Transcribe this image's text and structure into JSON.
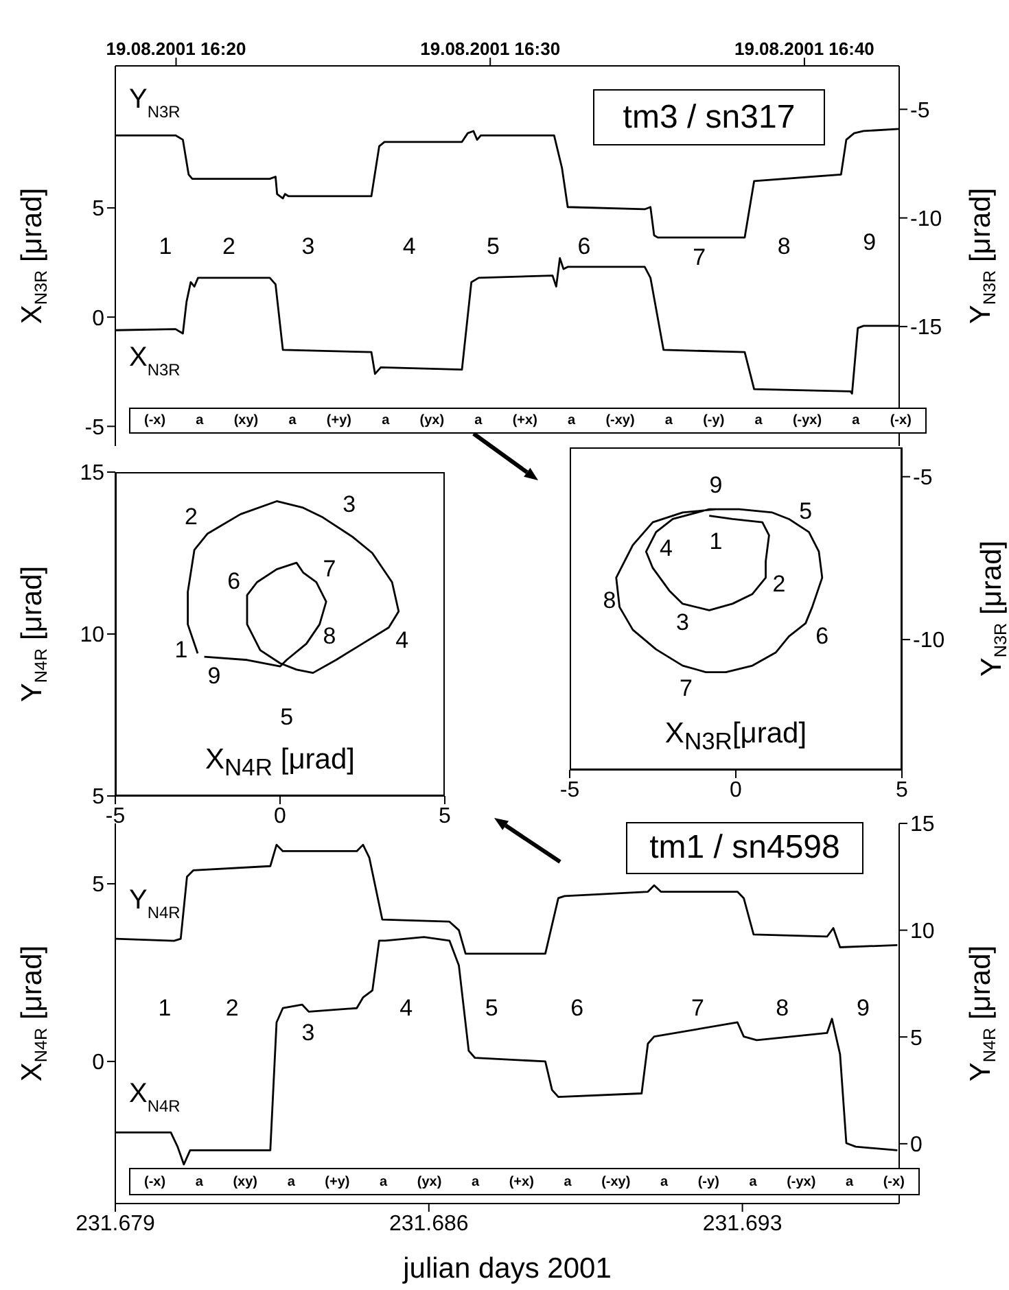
{
  "chart_data": [
    {
      "type": "line",
      "title": "tm3 / sn317",
      "ylabel": "X$_{N3R}$ [μrad]",
      "y2label": "Y$_{N3R}$ [μrad]",
      "xlim": [
        "2001-08-19T16:18:04",
        "2001-08-19T16:43:01"
      ],
      "xticks": [
        {
          "value": "2001-08-19T16:20",
          "label": "19.08.2001 16:20"
        },
        {
          "value": "2001-08-19T16:30",
          "label": "19.08.2001 16:30"
        },
        {
          "value": "2001-08-19T16:40",
          "label": "19.08.2001 16:40"
        }
      ],
      "ylim": [
        -5.9,
        11.5
      ],
      "yticks": [
        -5,
        0,
        5
      ],
      "y2lim": [
        -20.5,
        -3
      ],
      "y2ticks": [
        -15,
        -10,
        -5
      ],
      "series": [
        {
          "name": "Y$_{N3R}$",
          "axis": "y2",
          "color": "#000000",
          "x": [
            "2001-08-19T16:18:04",
            "2001-08-19T16:19:59",
            "2001-08-19T16:20:13",
            "2001-08-19T16:20:24",
            "2001-08-19T16:20:31",
            "2001-08-19T16:22:59",
            "2001-08-19T16:23:10",
            "2001-08-19T16:23:13",
            "2001-08-19T16:23:24",
            "2001-08-19T16:23:28",
            "2001-08-19T16:23:35",
            "2001-08-19T16:26:13",
            "2001-08-19T16:26:28",
            "2001-08-19T16:26:38",
            "2001-08-19T16:29:06",
            "2001-08-19T16:29:17",
            "2001-08-19T16:29:28",
            "2001-08-19T16:29:35",
            "2001-08-19T16:29:42",
            "2001-08-19T16:32:02",
            "2001-08-19T16:32:17",
            "2001-08-19T16:32:28",
            "2001-08-19T16:34:55",
            "2001-08-19T16:35:06",
            "2001-08-19T16:35:13",
            "2001-08-19T16:35:20",
            "2001-08-19T16:38:06",
            "2001-08-19T16:38:24",
            "2001-08-19T16:41:10",
            "2001-08-19T16:41:20",
            "2001-08-19T16:41:35",
            "2001-08-19T16:41:53",
            "2001-08-19T16:43:01"
          ],
          "values": [
            -6.2,
            -6.2,
            -6.4,
            -8.0,
            -8.2,
            -8.2,
            -8.1,
            -8.9,
            -9.1,
            -8.9,
            -9.0,
            -9.0,
            -6.7,
            -6.5,
            -6.5,
            -6.1,
            -6.0,
            -6.4,
            -6.2,
            -6.2,
            -7.7,
            -9.5,
            -9.6,
            -9.5,
            -10.8,
            -10.9,
            -10.9,
            -8.3,
            -8.0,
            -6.4,
            -6.1,
            -6.0,
            -5.9
          ]
        },
        {
          "name": "X$_{N3R}$",
          "color": "#000000",
          "x": [
            "2001-08-19T16:18:04",
            "2001-08-19T16:19:59",
            "2001-08-19T16:20:13",
            "2001-08-19T16:20:20",
            "2001-08-19T16:20:28",
            "2001-08-19T16:20:35",
            "2001-08-19T16:20:42",
            "2001-08-19T16:22:59",
            "2001-08-19T16:23:10",
            "2001-08-19T16:23:24",
            "2001-08-19T16:26:13",
            "2001-08-19T16:26:20",
            "2001-08-19T16:26:31",
            "2001-08-19T16:29:06",
            "2001-08-19T16:29:24",
            "2001-08-19T16:29:38",
            "2001-08-19T16:31:59",
            "2001-08-19T16:32:06",
            "2001-08-19T16:32:13",
            "2001-08-19T16:32:20",
            "2001-08-19T16:32:28",
            "2001-08-19T16:34:55",
            "2001-08-19T16:35:06",
            "2001-08-19T16:35:31",
            "2001-08-19T16:38:06",
            "2001-08-19T16:38:24",
            "2001-08-19T16:41:28",
            "2001-08-19T16:41:31",
            "2001-08-19T16:41:42",
            "2001-08-19T16:41:53",
            "2001-08-19T16:43:01"
          ],
          "values": [
            -0.6,
            -0.55,
            -0.75,
            0.7,
            1.6,
            1.4,
            1.8,
            1.8,
            1.5,
            -1.5,
            -1.6,
            -2.6,
            -2.3,
            -2.4,
            1.6,
            1.8,
            1.9,
            1.4,
            2.7,
            2.2,
            2.3,
            2.3,
            1.8,
            -1.5,
            -1.6,
            -3.3,
            -3.4,
            -3.5,
            -0.5,
            -0.4,
            -0.4
          ]
        }
      ],
      "annotations": [
        "(-x) a (xy) a (+y) a (yx) a (+x) a (-xy) a (-y) a (-yx) a (-x)",
        "1",
        "2",
        "3",
        "4",
        "5",
        "6",
        "7",
        "8",
        "9"
      ]
    },
    {
      "type": "line",
      "xlabel": "X$_{N4R}$ [μrad]",
      "ylabel": "Y$_{N4R}$ [μrad]",
      "xlim": [
        -5,
        5
      ],
      "xticks": [
        -5,
        0,
        5
      ],
      "ylim": [
        5,
        15
      ],
      "yticks": [
        5,
        10,
        15
      ],
      "series": [
        {
          "color": "#000000",
          "x": [
            -2.5,
            -2.8,
            -2.8,
            -2.6,
            -2.2,
            -1.2,
            -0.1,
            0.7,
            1.3,
            2.2,
            2.8,
            3.4,
            3.6,
            3.3,
            2.5,
            1.7,
            1.0,
            0.5,
            0.0,
            -0.6,
            -1.0,
            -1.0,
            -0.7,
            -0.1,
            0.5,
            0.7,
            1.1,
            1.4,
            1.2,
            0.8,
            0.2,
            0.0,
            -1.0,
            -2.3
          ],
          "values": [
            9.4,
            10.3,
            11.3,
            12.6,
            13.1,
            13.7,
            14.1,
            13.9,
            13.6,
            13.0,
            12.5,
            11.6,
            10.7,
            10.2,
            9.7,
            9.2,
            8.8,
            8.9,
            9.1,
            9.5,
            10.3,
            11.2,
            11.6,
            12.0,
            12.2,
            11.9,
            11.6,
            11.0,
            10.3,
            9.7,
            9.2,
            9.0,
            9.2,
            9.3
          ]
        }
      ],
      "annotations": [
        "1",
        "2",
        "3",
        "4",
        "5",
        "6",
        "7",
        "8",
        "9"
      ]
    },
    {
      "type": "line",
      "xlabel": "X$_{N3R}$[μrad]",
      "ylabel": "Y$_{N3R}$ [μrad]",
      "xlim": [
        -5,
        5
      ],
      "xticks": [
        -5,
        0,
        5
      ],
      "ylim": [
        -14,
        -4.1
      ],
      "yticks": [
        -10,
        -5
      ],
      "series": [
        {
          "color": "#000000",
          "x": [
            -0.8,
            -0.1,
            0.8,
            1.0,
            0.9,
            0.9,
            0.5,
            -0.1,
            -0.8,
            -1.6,
            -2.0,
            -2.5,
            -2.7,
            -2.4,
            -1.9,
            -0.8,
            0.1,
            1.1,
            1.6,
            2.2,
            2.5,
            2.6,
            2.3,
            2.1,
            1.6,
            1.2,
            0.5,
            -0.3,
            -0.9,
            -1.6,
            -2.4,
            -3.1,
            -3.5,
            -3.6,
            -3.1,
            -2.5,
            -1.6,
            -0.6
          ],
          "values": [
            -6.2,
            -6.3,
            -6.4,
            -6.8,
            -7.6,
            -8.1,
            -8.6,
            -8.9,
            -9.1,
            -8.9,
            -8.5,
            -7.8,
            -7.3,
            -6.7,
            -6.3,
            -6.0,
            -6.0,
            -6.1,
            -6.3,
            -6.7,
            -7.3,
            -8.1,
            -9.0,
            -9.5,
            -9.9,
            -10.4,
            -10.8,
            -11.0,
            -11.0,
            -10.8,
            -10.3,
            -9.7,
            -9.0,
            -8.1,
            -7.1,
            -6.4,
            -6.1,
            -6.0
          ]
        }
      ],
      "annotations": [
        "9",
        "5",
        "1",
        "4",
        "2",
        "8",
        "3",
        "6",
        "7"
      ]
    },
    {
      "type": "line",
      "title": "tm1 / sn4598",
      "xlabel": "julian days 2001",
      "ylabel": "X$_{N4R}$ [μrad]",
      "y2label": "Y$_{N4R}$ [μrad]",
      "xlim": [
        231.679,
        231.6965
      ],
      "xticks": [
        231.679,
        231.686,
        231.693
      ],
      "ylim": [
        -4.0,
        6.7
      ],
      "yticks": [
        0,
        5
      ],
      "y2lim": [
        -2.8,
        15
      ],
      "y2ticks": [
        0,
        5,
        10,
        15
      ],
      "series": [
        {
          "name": "Y$_{N4R}$",
          "axis": "y2",
          "color": "#000000",
          "x": [
            231.679,
            231.68031,
            231.68046,
            231.6806,
            231.68074,
            231.68246,
            231.6826,
            231.68274,
            231.68439,
            231.68453,
            231.68467,
            231.68496,
            231.68646,
            231.68667,
            231.68682,
            231.6886,
            231.68889,
            231.68903,
            231.69089,
            231.69103,
            231.69118,
            231.69289,
            231.69303,
            231.69325,
            231.69489,
            231.69503,
            231.69518,
            231.69646
          ],
          "values": [
            9.6,
            9.5,
            9.6,
            12.5,
            12.8,
            13.0,
            14.0,
            13.7,
            13.7,
            14.0,
            13.4,
            10.5,
            10.4,
            10.0,
            8.9,
            8.9,
            11.5,
            11.6,
            11.8,
            12.1,
            11.8,
            11.8,
            11.5,
            9.8,
            9.7,
            10.1,
            9.2,
            9.3
          ]
        },
        {
          "name": "X$_{N4R}$",
          "color": "#000000",
          "x": [
            231.679,
            231.68024,
            231.68039,
            231.68053,
            231.68067,
            231.68089,
            231.68246,
            231.6826,
            231.68274,
            231.68317,
            231.68332,
            231.68439,
            231.68453,
            231.68474,
            231.68489,
            231.68503,
            231.68589,
            231.68646,
            231.68667,
            231.68689,
            231.68703,
            231.6886,
            231.68875,
            231.68889,
            231.69075,
            231.69089,
            231.69103,
            231.69289,
            231.69303,
            231.69332,
            231.69489,
            231.695,
            231.69518,
            231.69532,
            231.69553,
            231.69646
          ],
          "values": [
            -2.0,
            -2.0,
            -2.4,
            -2.9,
            -2.5,
            -2.5,
            -2.5,
            1.1,
            1.5,
            1.6,
            1.4,
            1.5,
            1.8,
            2.0,
            3.4,
            3.4,
            3.5,
            3.4,
            2.7,
            0.3,
            0.1,
            0.0,
            -0.8,
            -1.0,
            -0.9,
            0.5,
            0.7,
            1.1,
            0.7,
            0.6,
            0.8,
            1.2,
            0.2,
            -2.3,
            -2.4,
            -2.5
          ]
        }
      ],
      "annotations": [
        "(-x) a (xy) a (+y) a (yx) a (+x) a (-xy) a (-y) a (-yx) a (-x)",
        "1",
        "2",
        "3",
        "4",
        "5",
        "6",
        "7",
        "8",
        "9"
      ]
    }
  ]
}
